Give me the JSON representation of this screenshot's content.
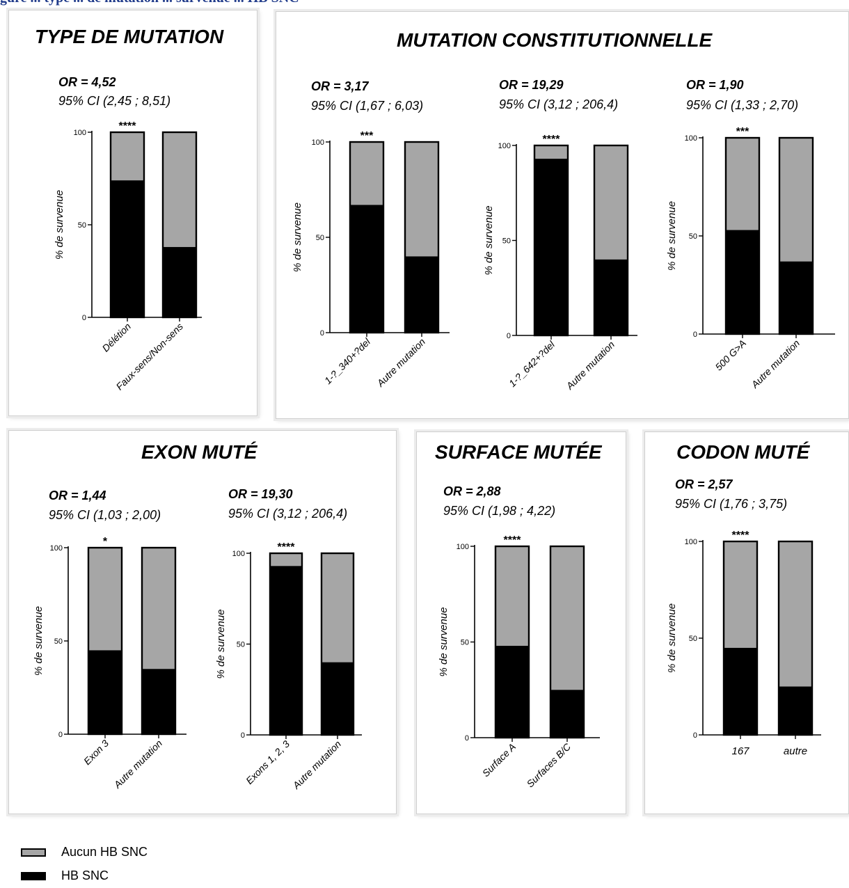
{
  "header": {
    "caption_fragment": "gure ... type ... de mutation ... survenue ... HB SNC"
  },
  "colors": {
    "no_hb": "#a6a6a6",
    "hb": "#000000",
    "caption": "#1f3a8a",
    "panel_border": "#cfcfcf"
  },
  "panels": [
    {
      "title": "TYPE DE MUTATION"
    },
    {
      "title": "MUTATION CONSTITUTIONNELLE"
    },
    {
      "title": "EXON MUTÉ"
    },
    {
      "title": "SURFACE MUTÉE"
    },
    {
      "title": "CODON MUTÉ"
    }
  ],
  "legend": [
    {
      "label": "Aucun HB SNC",
      "color": "#a6a6a6"
    },
    {
      "label": "HB SNC",
      "color": "#000000"
    }
  ],
  "chart_data": [
    {
      "type": "bar",
      "stacked": true,
      "panel": "TYPE DE MUTATION",
      "or_text": "OR = 4,52",
      "ci_text": "95% CI (2,45 ; 8,51)",
      "significance": "****",
      "ylabel": "% de survenue",
      "ylim": [
        0,
        100
      ],
      "yticks": [
        0,
        50,
        100
      ],
      "categories": [
        "Délétion",
        "Faux-sens/Non-sens"
      ],
      "series": [
        {
          "name": "HB SNC",
          "values": [
            74,
            38
          ]
        },
        {
          "name": "Aucun HB SNC",
          "values": [
            26,
            62
          ]
        }
      ]
    },
    {
      "type": "bar",
      "stacked": true,
      "panel": "MUTATION CONSTITUTIONNELLE",
      "or_text": "OR = 3,17",
      "ci_text": "95% CI (1,67 ; 6,03)",
      "significance": "***",
      "ylabel": "% de survenue",
      "ylim": [
        0,
        100
      ],
      "yticks": [
        0,
        50,
        100
      ],
      "categories": [
        "1-?_340+?del",
        "Autre mutation"
      ],
      "series": [
        {
          "name": "HB SNC",
          "values": [
            67,
            40
          ]
        },
        {
          "name": "Aucun HB SNC",
          "values": [
            33,
            60
          ]
        }
      ]
    },
    {
      "type": "bar",
      "stacked": true,
      "panel": "MUTATION CONSTITUTIONNELLE",
      "or_text": "OR = 19,29",
      "ci_text": "95% CI (3,12 ; 206,4)",
      "significance": "****",
      "ylabel": "% de survenue",
      "ylim": [
        0,
        100
      ],
      "yticks": [
        0,
        50,
        100
      ],
      "categories": [
        "1-?_642+?del",
        "Autre mutation"
      ],
      "series": [
        {
          "name": "HB SNC",
          "values": [
            93,
            40
          ]
        },
        {
          "name": "Aucun HB SNC",
          "values": [
            7,
            60
          ]
        }
      ]
    },
    {
      "type": "bar",
      "stacked": true,
      "panel": "MUTATION CONSTITUTIONNELLE",
      "or_text": "OR = 1,90",
      "ci_text": "95% CI (1,33 ; 2,70)",
      "significance": "***",
      "ylabel": "% de survenue",
      "ylim": [
        0,
        100
      ],
      "yticks": [
        0,
        50,
        100
      ],
      "categories": [
        "500 G>A",
        "Autre mutation"
      ],
      "series": [
        {
          "name": "HB SNC",
          "values": [
            53,
            37
          ]
        },
        {
          "name": "Aucun HB SNC",
          "values": [
            47,
            63
          ]
        }
      ]
    },
    {
      "type": "bar",
      "stacked": true,
      "panel": "EXON MUTÉ",
      "or_text": "OR = 1,44",
      "ci_text": "95% CI (1,03 ; 2,00)",
      "significance": "*",
      "ylabel": "% de survenue",
      "ylim": [
        0,
        100
      ],
      "yticks": [
        0,
        50,
        100
      ],
      "categories": [
        "Exon 3",
        "Autre mutation"
      ],
      "series": [
        {
          "name": "HB SNC",
          "values": [
            45,
            35
          ]
        },
        {
          "name": "Aucun HB SNC",
          "values": [
            55,
            65
          ]
        }
      ]
    },
    {
      "type": "bar",
      "stacked": true,
      "panel": "EXON MUTÉ",
      "or_text": "OR = 19,30",
      "ci_text": "95% CI (3,12 ; 206,4)",
      "significance": "****",
      "ylabel": "% de survenue",
      "ylim": [
        0,
        100
      ],
      "yticks": [
        0,
        50,
        100
      ],
      "categories": [
        "Exons 1, 2, 3",
        "Autre mutation"
      ],
      "series": [
        {
          "name": "HB SNC",
          "values": [
            93,
            40
          ]
        },
        {
          "name": "Aucun HB SNC",
          "values": [
            7,
            60
          ]
        }
      ]
    },
    {
      "type": "bar",
      "stacked": true,
      "panel": "SURFACE MUTÉE",
      "or_text": "OR = 2,88",
      "ci_text": "95% CI (1,98 ; 4,22)",
      "significance": "****",
      "ylabel": "% de survenue",
      "ylim": [
        0,
        100
      ],
      "yticks": [
        0,
        50,
        100
      ],
      "categories": [
        "Surface A",
        "Surfaces B/C"
      ],
      "series": [
        {
          "name": "HB SNC",
          "values": [
            48,
            25
          ]
        },
        {
          "name": "Aucun HB SNC",
          "values": [
            52,
            75
          ]
        }
      ]
    },
    {
      "type": "bar",
      "stacked": true,
      "panel": "CODON MUTÉ",
      "or_text": "OR = 2,57",
      "ci_text": "95% CI (1,76 ; 3,75)",
      "significance": "****",
      "ylabel": "% de survenue",
      "ylim": [
        0,
        100
      ],
      "yticks": [
        0,
        50,
        100
      ],
      "categories": [
        "167",
        "autre"
      ],
      "series": [
        {
          "name": "HB SNC",
          "values": [
            45,
            25
          ]
        },
        {
          "name": "Aucun HB SNC",
          "values": [
            55,
            75
          ]
        }
      ]
    }
  ]
}
